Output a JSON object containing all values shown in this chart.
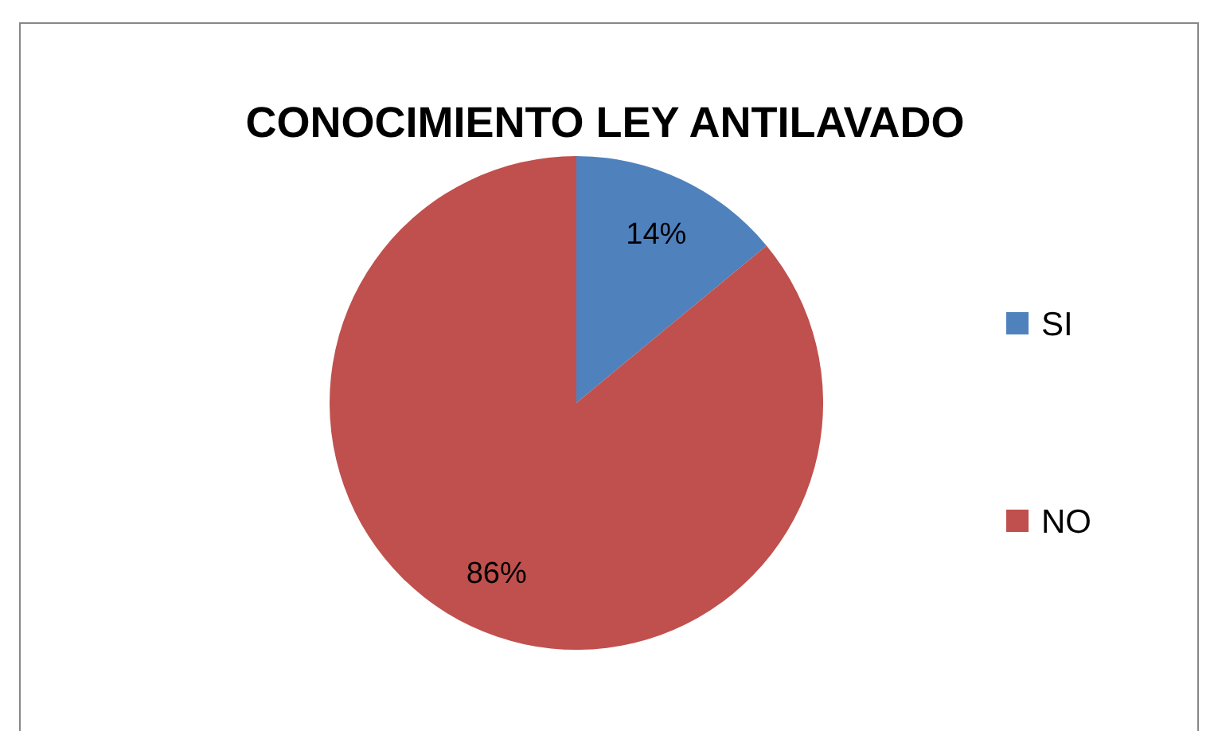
{
  "chart_data": {
    "type": "pie",
    "title": "CONOCIMIENTO LEY ANTILAVADO",
    "categories": [
      "SI",
      "NO"
    ],
    "values": [
      14,
      86
    ],
    "colors": [
      "#4f81bd",
      "#c0504d"
    ],
    "value_labels": [
      "14%",
      "86%"
    ],
    "legend": "right"
  }
}
